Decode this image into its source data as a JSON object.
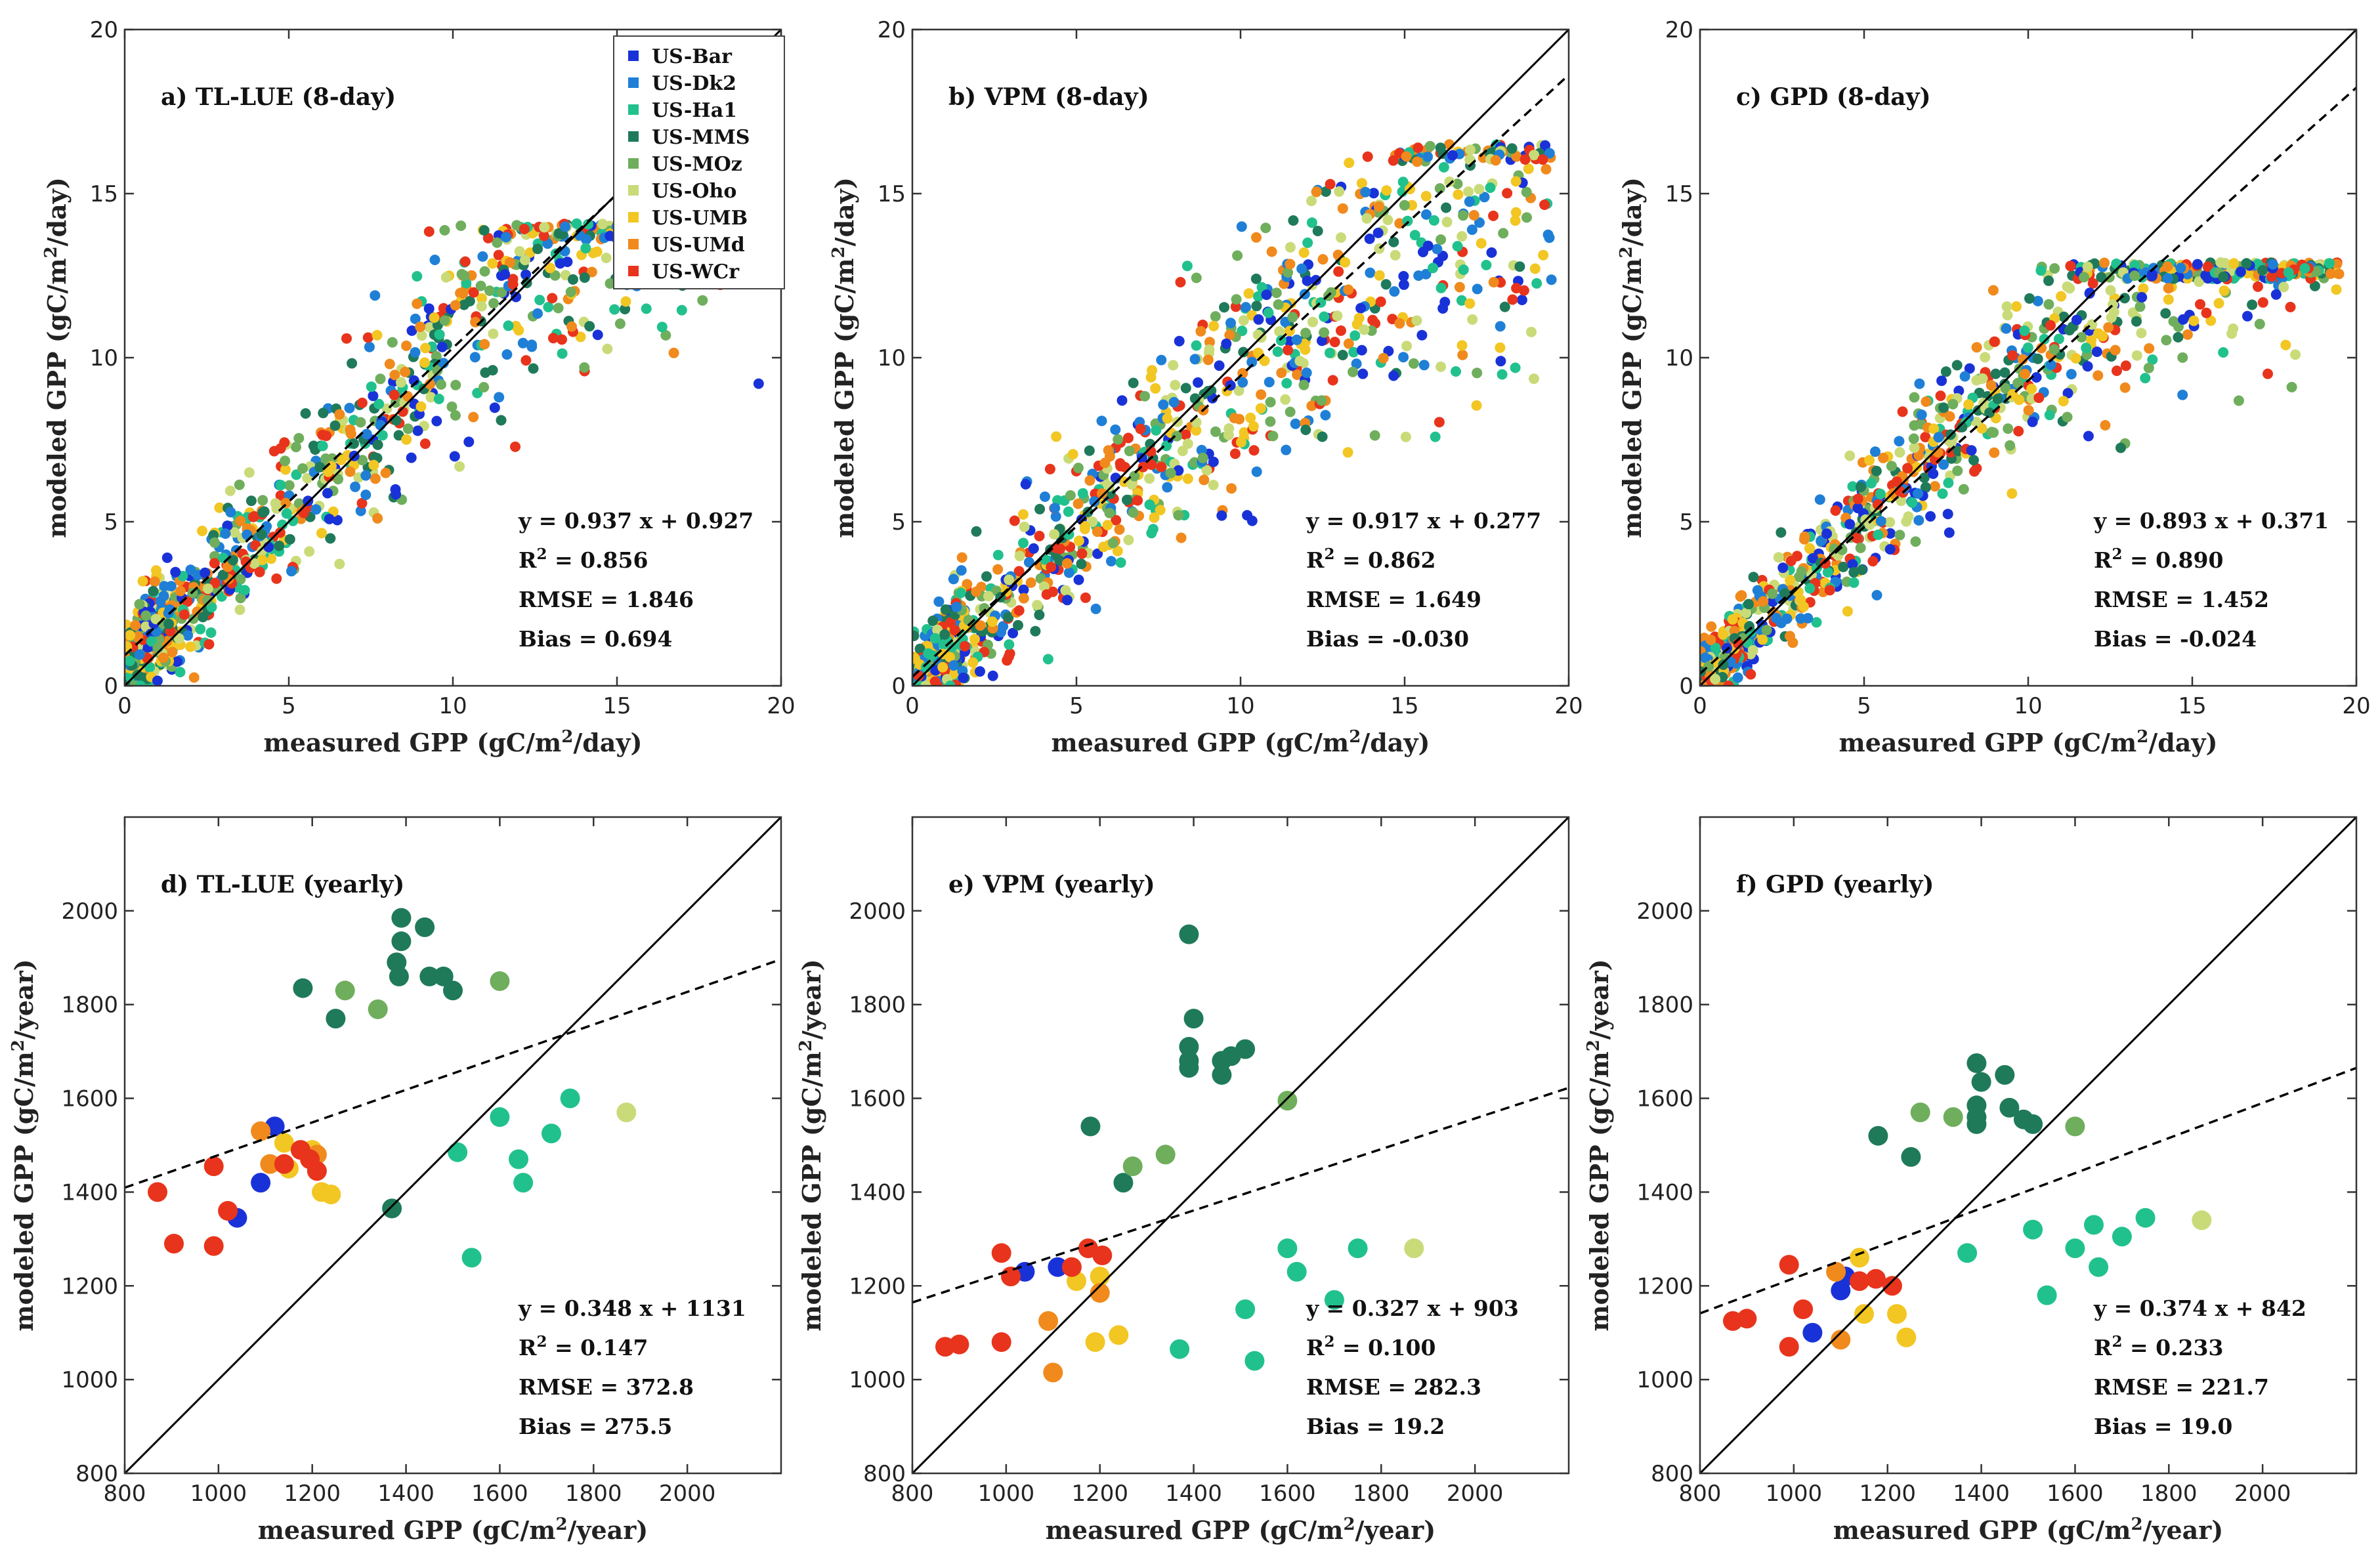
{
  "chart_data": [
    {
      "panel": "a",
      "type": "scatter",
      "title": "a) TL-LUE (8-day)",
      "xlabel": "measured GPP (gC/m2/day)",
      "ylabel": "modeled GPP (gC/m2/day)",
      "xlim": [
        0,
        20
      ],
      "ylim": [
        0,
        20
      ],
      "xticks": [
        0,
        5,
        10,
        15,
        20
      ],
      "yticks": [
        0,
        5,
        10,
        15,
        20
      ],
      "grid": false,
      "one_to_one": true,
      "fit_line": {
        "slope": 0.937,
        "intercept": 0.927
      },
      "stats": {
        "eq": "y = 0.937 x + 0.927",
        "r2": "0.856",
        "rmse": "RMSE = 1.846",
        "bias": "Bias =  0.694"
      },
      "point_cloud": {
        "n": 1100,
        "x_range": [
          0,
          19.5
        ],
        "slope": 1.0,
        "intercept": 0.6,
        "noise": 1.6,
        "cap": 13.6
      },
      "legend": {
        "placement": "top-right",
        "entries": [
          {
            "name": "US-Bar",
            "color": "#1932d8"
          },
          {
            "name": "US-Dk2",
            "color": "#1f7fd6"
          },
          {
            "name": "US-Ha1",
            "color": "#21c18e"
          },
          {
            "name": "US-MMS",
            "color": "#1f7a5a"
          },
          {
            "name": "US-MOz",
            "color": "#6fae5c"
          },
          {
            "name": "US-Oho",
            "color": "#c9db78"
          },
          {
            "name": "US-UMB",
            "color": "#f2c623"
          },
          {
            "name": "US-UMd",
            "color": "#f08a1c"
          },
          {
            "name": "US-WCr",
            "color": "#e8341c"
          }
        ]
      }
    },
    {
      "panel": "b",
      "type": "scatter",
      "title": "b) VPM (8-day)",
      "xlabel": "measured GPP (gC/m2/day)",
      "ylabel": "modeled GPP (gC/m2/day)",
      "xlim": [
        0,
        20
      ],
      "ylim": [
        0,
        20
      ],
      "xticks": [
        0,
        5,
        10,
        15,
        20
      ],
      "yticks": [
        0,
        5,
        10,
        15,
        20
      ],
      "grid": false,
      "one_to_one": true,
      "fit_line": {
        "slope": 0.917,
        "intercept": 0.277
      },
      "stats": {
        "eq": "y = 0.917 x + 0.277",
        "r2": "0.862",
        "rmse": "RMSE = 1.649",
        "bias": "Bias =  -0.030"
      },
      "point_cloud": {
        "n": 1100,
        "x_range": [
          0,
          19.5
        ],
        "slope": 0.95,
        "intercept": 0.1,
        "noise": 1.7,
        "cap": 16
      }
    },
    {
      "panel": "c",
      "type": "scatter",
      "title": "c) GPD (8-day)",
      "xlabel": "measured GPP (gC/m2/day)",
      "ylabel": "modeled GPP (gC/m2/day)",
      "xlim": [
        0,
        20
      ],
      "ylim": [
        0,
        20
      ],
      "xticks": [
        0,
        5,
        10,
        15,
        20
      ],
      "yticks": [
        0,
        5,
        10,
        15,
        20
      ],
      "grid": false,
      "one_to_one": true,
      "fit_line": {
        "slope": 0.893,
        "intercept": 0.371
      },
      "stats": {
        "eq": "y = 0.893 x + 0.371",
        "r2": "0.890",
        "rmse": "RMSE = 1.452",
        "bias": "Bias =  -0.024"
      },
      "point_cloud": {
        "n": 1100,
        "x_range": [
          0,
          19.5
        ],
        "slope": 0.95,
        "intercept": 0.2,
        "noise": 1.3,
        "cap": 12.4
      }
    },
    {
      "panel": "d",
      "type": "scatter",
      "title": "d) TL-LUE (yearly)",
      "xlabel": "measured GPP (gC/m2/year)",
      "ylabel": "modeled GPP (gC/m2/year)",
      "xlim": [
        800,
        2200
      ],
      "ylim": [
        800,
        2200
      ],
      "xticks": [
        800,
        1000,
        1200,
        1400,
        1600,
        1800,
        2000
      ],
      "yticks": [
        800,
        1000,
        1200,
        1400,
        1600,
        1800,
        2000
      ],
      "grid": false,
      "one_to_one": true,
      "fit_line": {
        "slope": 0.348,
        "intercept": 1131
      },
      "stats": {
        "eq": "y = 0.348 x + 1131",
        "r2": "0.147",
        "rmse": "RMSE = 372.8",
        "bias": "Bias =  275.5"
      },
      "points": [
        [
          1390,
          1985,
          "#1f7a5a"
        ],
        [
          1440,
          1965,
          "#1f7a5a"
        ],
        [
          1390,
          1935,
          "#1f7a5a"
        ],
        [
          1380,
          1890,
          "#1f7a5a"
        ],
        [
          1385,
          1860,
          "#1f7a5a"
        ],
        [
          1450,
          1860,
          "#1f7a5a"
        ],
        [
          1480,
          1860,
          "#1f7a5a"
        ],
        [
          1500,
          1830,
          "#1f7a5a"
        ],
        [
          1180,
          1835,
          "#1f7a5a"
        ],
        [
          1250,
          1770,
          "#1f7a5a"
        ],
        [
          1370,
          1365,
          "#1f7a5a"
        ],
        [
          1270,
          1830,
          "#6fae5c"
        ],
        [
          1340,
          1790,
          "#6fae5c"
        ],
        [
          1600,
          1850,
          "#6fae5c"
        ],
        [
          1870,
          1570,
          "#c9db78"
        ],
        [
          1600,
          1560,
          "#21c18e"
        ],
        [
          1750,
          1600,
          "#21c18e"
        ],
        [
          1710,
          1525,
          "#21c18e"
        ],
        [
          1640,
          1470,
          "#21c18e"
        ],
        [
          1650,
          1420,
          "#21c18e"
        ],
        [
          1510,
          1485,
          "#21c18e"
        ],
        [
          1540,
          1260,
          "#21c18e"
        ],
        [
          1120,
          1540,
          "#1932d8"
        ],
        [
          1040,
          1345,
          "#1932d8"
        ],
        [
          1090,
          1420,
          "#1932d8"
        ],
        [
          1140,
          1505,
          "#f2c623"
        ],
        [
          1150,
          1450,
          "#f2c623"
        ],
        [
          1220,
          1400,
          "#f2c623"
        ],
        [
          1240,
          1395,
          "#f2c623"
        ],
        [
          1200,
          1490,
          "#f2c623"
        ],
        [
          1090,
          1530,
          "#f08a1c"
        ],
        [
          1110,
          1460,
          "#f08a1c"
        ],
        [
          1210,
          1480,
          "#f08a1c"
        ],
        [
          870,
          1400,
          "#e8341c"
        ],
        [
          905,
          1290,
          "#e8341c"
        ],
        [
          990,
          1455,
          "#e8341c"
        ],
        [
          1020,
          1360,
          "#e8341c"
        ],
        [
          990,
          1285,
          "#e8341c"
        ],
        [
          1140,
          1460,
          "#e8341c"
        ],
        [
          1175,
          1490,
          "#e8341c"
        ],
        [
          1195,
          1470,
          "#e8341c"
        ],
        [
          1210,
          1445,
          "#e8341c"
        ]
      ]
    },
    {
      "panel": "e",
      "type": "scatter",
      "title": "e) VPM (yearly)",
      "xlabel": "measured GPP (gC/m2/year)",
      "ylabel": "modeled GPP (gC/m2/year)",
      "xlim": [
        800,
        2200
      ],
      "ylim": [
        800,
        2200
      ],
      "xticks": [
        800,
        1000,
        1200,
        1400,
        1600,
        1800,
        2000
      ],
      "yticks": [
        800,
        1000,
        1200,
        1400,
        1600,
        1800,
        2000
      ],
      "grid": false,
      "one_to_one": true,
      "fit_line": {
        "slope": 0.327,
        "intercept": 903
      },
      "stats": {
        "eq": "y = 0.327 x + 903",
        "r2": "0.100",
        "rmse": "RMSE = 282.3",
        "bias": "Bias =  19.2"
      },
      "points": [
        [
          1390,
          1950,
          "#1f7a5a"
        ],
        [
          1400,
          1770,
          "#1f7a5a"
        ],
        [
          1390,
          1710,
          "#1f7a5a"
        ],
        [
          1390,
          1680,
          "#1f7a5a"
        ],
        [
          1390,
          1665,
          "#1f7a5a"
        ],
        [
          1460,
          1680,
          "#1f7a5a"
        ],
        [
          1460,
          1650,
          "#1f7a5a"
        ],
        [
          1480,
          1690,
          "#1f7a5a"
        ],
        [
          1510,
          1705,
          "#1f7a5a"
        ],
        [
          1180,
          1540,
          "#1f7a5a"
        ],
        [
          1250,
          1420,
          "#1f7a5a"
        ],
        [
          1270,
          1455,
          "#6fae5c"
        ],
        [
          1340,
          1480,
          "#6fae5c"
        ],
        [
          1600,
          1595,
          "#6fae5c"
        ],
        [
          1870,
          1280,
          "#c9db78"
        ],
        [
          1600,
          1280,
          "#21c18e"
        ],
        [
          1620,
          1230,
          "#21c18e"
        ],
        [
          1700,
          1170,
          "#21c18e"
        ],
        [
          1750,
          1280,
          "#21c18e"
        ],
        [
          1510,
          1150,
          "#21c18e"
        ],
        [
          1370,
          1065,
          "#21c18e"
        ],
        [
          1530,
          1040,
          "#21c18e"
        ],
        [
          1040,
          1230,
          "#1932d8"
        ],
        [
          1110,
          1240,
          "#1932d8"
        ],
        [
          1150,
          1210,
          "#f2c623"
        ],
        [
          1200,
          1220,
          "#f2c623"
        ],
        [
          1190,
          1080,
          "#f2c623"
        ],
        [
          1240,
          1095,
          "#f2c623"
        ],
        [
          1090,
          1125,
          "#f08a1c"
        ],
        [
          1100,
          1015,
          "#f08a1c"
        ],
        [
          1200,
          1185,
          "#f08a1c"
        ],
        [
          870,
          1070,
          "#e8341c"
        ],
        [
          900,
          1075,
          "#e8341c"
        ],
        [
          990,
          1270,
          "#e8341c"
        ],
        [
          1010,
          1220,
          "#e8341c"
        ],
        [
          990,
          1080,
          "#e8341c"
        ],
        [
          1140,
          1240,
          "#e8341c"
        ],
        [
          1175,
          1280,
          "#e8341c"
        ],
        [
          1205,
          1265,
          "#e8341c"
        ]
      ]
    },
    {
      "panel": "f",
      "type": "scatter",
      "title": "f) GPD (yearly)",
      "xlabel": "measured GPP (gC/m2/year)",
      "ylabel": "modeled GPP (gC/m2/year)",
      "xlim": [
        800,
        2200
      ],
      "ylim": [
        800,
        2200
      ],
      "xticks": [
        800,
        1000,
        1200,
        1400,
        1600,
        1800,
        2000
      ],
      "yticks": [
        800,
        1000,
        1200,
        1400,
        1600,
        1800,
        2000
      ],
      "grid": false,
      "one_to_one": true,
      "fit_line": {
        "slope": 0.374,
        "intercept": 842
      },
      "stats": {
        "eq": "y = 0.374 x + 842",
        "r2": "0.233",
        "rmse": "RMSE = 221.7",
        "bias": "Bias =  19.0"
      },
      "points": [
        [
          1390,
          1675,
          "#1f7a5a"
        ],
        [
          1400,
          1635,
          "#1f7a5a"
        ],
        [
          1390,
          1585,
          "#1f7a5a"
        ],
        [
          1390,
          1560,
          "#1f7a5a"
        ],
        [
          1390,
          1545,
          "#1f7a5a"
        ],
        [
          1450,
          1650,
          "#1f7a5a"
        ],
        [
          1460,
          1580,
          "#1f7a5a"
        ],
        [
          1490,
          1555,
          "#1f7a5a"
        ],
        [
          1510,
          1545,
          "#1f7a5a"
        ],
        [
          1180,
          1520,
          "#1f7a5a"
        ],
        [
          1250,
          1475,
          "#1f7a5a"
        ],
        [
          1270,
          1570,
          "#6fae5c"
        ],
        [
          1340,
          1560,
          "#6fae5c"
        ],
        [
          1600,
          1540,
          "#6fae5c"
        ],
        [
          1870,
          1340,
          "#c9db78"
        ],
        [
          1510,
          1320,
          "#21c18e"
        ],
        [
          1540,
          1180,
          "#21c18e"
        ],
        [
          1600,
          1280,
          "#21c18e"
        ],
        [
          1640,
          1330,
          "#21c18e"
        ],
        [
          1650,
          1240,
          "#21c18e"
        ],
        [
          1700,
          1305,
          "#21c18e"
        ],
        [
          1750,
          1345,
          "#21c18e"
        ],
        [
          1370,
          1270,
          "#21c18e"
        ],
        [
          1040,
          1100,
          "#1932d8"
        ],
        [
          1100,
          1190,
          "#1932d8"
        ],
        [
          1110,
          1220,
          "#1932d8"
        ],
        [
          1140,
          1260,
          "#f2c623"
        ],
        [
          1150,
          1140,
          "#f2c623"
        ],
        [
          1220,
          1140,
          "#f2c623"
        ],
        [
          1240,
          1090,
          "#f2c623"
        ],
        [
          1090,
          1230,
          "#f08a1c"
        ],
        [
          1100,
          1085,
          "#f08a1c"
        ],
        [
          870,
          1125,
          "#e8341c"
        ],
        [
          900,
          1130,
          "#e8341c"
        ],
        [
          990,
          1245,
          "#e8341c"
        ],
        [
          1020,
          1150,
          "#e8341c"
        ],
        [
          990,
          1070,
          "#e8341c"
        ],
        [
          1140,
          1210,
          "#e8341c"
        ],
        [
          1175,
          1215,
          "#e8341c"
        ],
        [
          1210,
          1200,
          "#e8341c"
        ]
      ]
    }
  ]
}
